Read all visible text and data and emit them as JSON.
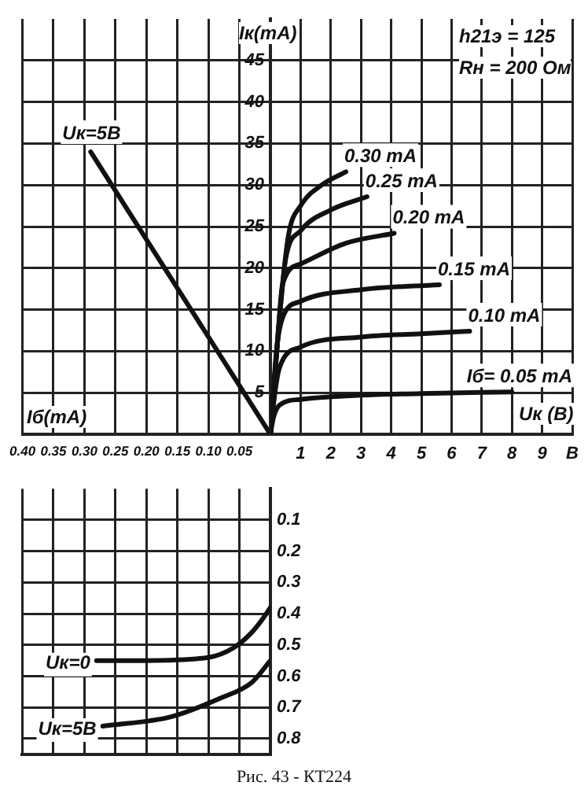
{
  "chart_data": [
    {
      "type": "line",
      "xlabel": "Uк (В)",
      "ylabel": "Iк(mA)",
      "annotations": [
        "h21э = 125",
        "Rн = 200 Ом"
      ],
      "xlim": [
        0,
        10
      ],
      "ylim": [
        0,
        50
      ],
      "xticks": [
        1,
        2,
        3,
        4,
        5,
        6,
        7,
        8,
        9,
        {
          "value": 10,
          "label": "В"
        }
      ],
      "yticks": [
        5,
        10,
        15,
        20,
        25,
        30,
        35,
        40,
        45
      ],
      "grid": true,
      "series": [
        {
          "name": "Iб= 0.05 mA",
          "color": "#111111",
          "x": [
            0,
            0.1,
            0.3,
            1,
            3,
            5,
            8
          ],
          "values": [
            0,
            2,
            3.5,
            4.2,
            4.7,
            4.9,
            5.1
          ]
        },
        {
          "name": "0.10 mA",
          "color": "#111111",
          "x": [
            0,
            0.15,
            0.3,
            1,
            3,
            5,
            6.6
          ],
          "values": [
            0,
            5,
            8,
            10.5,
            11.7,
            12.1,
            12.4
          ]
        },
        {
          "name": "0.15 mA",
          "color": "#111111",
          "x": [
            0,
            0.2,
            0.4,
            1,
            3,
            5.6
          ],
          "values": [
            0,
            10,
            14,
            16,
            17.4,
            18
          ]
        },
        {
          "name": "0.20 mA",
          "color": "#111111",
          "x": [
            0,
            0.25,
            0.4,
            1,
            2.5,
            4.1
          ],
          "values": [
            0,
            12,
            18,
            20.5,
            23,
            24.2
          ]
        },
        {
          "name": "0.25 mA",
          "color": "#111111",
          "x": [
            0,
            0.3,
            0.5,
            1,
            2,
            3.2
          ],
          "values": [
            0,
            14,
            21,
            24.5,
            27,
            28.6
          ]
        },
        {
          "name": "0.30 mA",
          "color": "#111111",
          "x": [
            0,
            0.35,
            0.6,
            1,
            1.7,
            2.5
          ],
          "values": [
            0,
            16,
            24,
            27.5,
            30,
            31.6
          ]
        }
      ]
    },
    {
      "type": "line",
      "xlabel": "Iб(mA)",
      "xlim": [
        0.4,
        0
      ],
      "ylim": [
        0,
        50
      ],
      "xticks": [
        {
          "value": 0.4,
          "label": "0.40"
        },
        0.35,
        {
          "value": 0.3,
          "label": "0.30"
        },
        0.25,
        {
          "value": 0.2,
          "label": "0.20"
        },
        0.15,
        {
          "value": 0.1,
          "label": "0.10"
        },
        0.05
      ],
      "yticks": [
        5,
        10,
        15,
        20,
        25,
        30,
        35,
        40,
        45
      ],
      "tick_labels": "x",
      "grid": true,
      "series": [
        {
          "name": "Uк=5В",
          "color": "#111111",
          "x": [
            0,
            0.29
          ],
          "values": [
            0,
            34
          ]
        }
      ]
    },
    {
      "type": "line",
      "annotations": [
        "Рис. 43 - КТ224"
      ],
      "xlim": [
        0.4,
        0
      ],
      "ylim": [
        0.85,
        0
      ],
      "xticks": [
        0.4,
        0.35,
        0.3,
        0.25,
        0.2,
        0.15,
        0.1,
        0.05
      ],
      "yticks": [
        0.1,
        0.2,
        0.3,
        0.4,
        0.5,
        0.6,
        0.7,
        0.8
      ],
      "tick_labels": "y",
      "grid": true,
      "series": [
        {
          "name": "Uк=0",
          "color": "#111111",
          "x": [
            0.28,
            0.2,
            0.1,
            0.06,
            0.03,
            0.01,
            0
          ],
          "values": [
            0.55,
            0.55,
            0.54,
            0.51,
            0.46,
            0.41,
            0.38
          ]
        },
        {
          "name": "Uк=5В",
          "color": "#111111",
          "x": [
            0.27,
            0.16,
            0.08,
            0.03,
            0
          ],
          "values": [
            0.76,
            0.73,
            0.67,
            0.62,
            0.55
          ]
        }
      ]
    }
  ]
}
